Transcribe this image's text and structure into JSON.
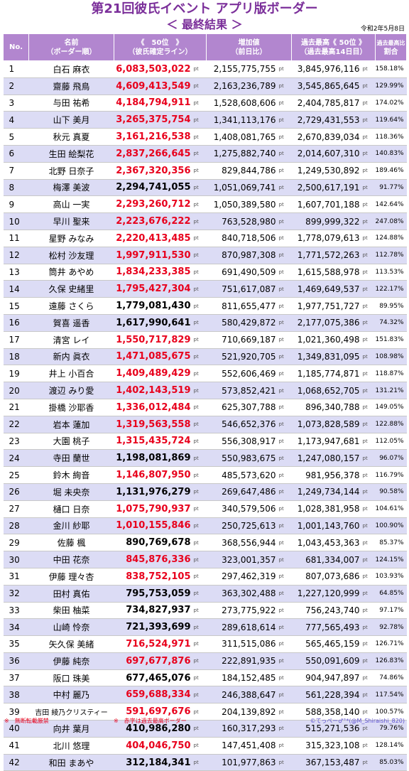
{
  "title": "第21回彼氏イベント アプリ版ボーダー",
  "subtitle": "＜ 最終結果 ＞",
  "date": "令和2年5月8日",
  "headers": {
    "no": "No.",
    "name_l1": "名前",
    "name_l2": "（ボーダー順）",
    "score_l1": "《　50位　》",
    "score_l2": "（彼氏確定ライン）",
    "inc_l1": "増加値",
    "inc_l2": "（前日比）",
    "best_l1": "過去最高《 50位 》",
    "best_l2": "（過去最高14日目）",
    "ratio_l1": "過去最高比",
    "ratio_l2": "割合"
  },
  "unit": "pt",
  "rows": [
    {
      "rank": "1",
      "name": "白石 麻衣",
      "score": "6,083,503,022",
      "inc": "2,155,775,755",
      "best": "3,845,976,116",
      "ratio": "158.18%",
      "red": true
    },
    {
      "rank": "2",
      "name": "齋藤 飛鳥",
      "score": "4,609,413,549",
      "inc": "2,163,236,789",
      "best": "3,545,865,645",
      "ratio": "129.99%",
      "red": true
    },
    {
      "rank": "3",
      "name": "与田 祐希",
      "score": "4,184,794,911",
      "inc": "1,528,608,606",
      "best": "2,404,785,817",
      "ratio": "174.02%",
      "red": true
    },
    {
      "rank": "4",
      "name": "山下 美月",
      "score": "3,265,375,754",
      "inc": "1,341,113,176",
      "best": "2,729,431,553",
      "ratio": "119.64%",
      "red": true
    },
    {
      "rank": "5",
      "name": "秋元 真夏",
      "score": "3,161,216,538",
      "inc": "1,408,081,765",
      "best": "2,670,839,034",
      "ratio": "118.36%",
      "red": true
    },
    {
      "rank": "6",
      "name": "生田 絵梨花",
      "score": "2,837,266,645",
      "inc": "1,275,882,740",
      "best": "2,014,607,310",
      "ratio": "140.83%",
      "red": true
    },
    {
      "rank": "7",
      "name": "北野 日奈子",
      "score": "2,367,320,356",
      "inc": "829,844,786",
      "best": "1,249,530,892",
      "ratio": "189.46%",
      "red": true
    },
    {
      "rank": "8",
      "name": "梅澤 美波",
      "score": "2,294,741,055",
      "inc": "1,051,069,741",
      "best": "2,500,617,191",
      "ratio": "91.77%",
      "red": false
    },
    {
      "rank": "9",
      "name": "高山 一実",
      "score": "2,293,260,712",
      "inc": "1,050,389,580",
      "best": "1,607,701,188",
      "ratio": "142.64%",
      "red": true
    },
    {
      "rank": "10",
      "name": "早川 聖来",
      "score": "2,223,676,222",
      "inc": "763,528,980",
      "best": "899,999,322",
      "ratio": "247.08%",
      "red": true
    },
    {
      "rank": "11",
      "name": "星野 みなみ",
      "score": "2,220,413,485",
      "inc": "840,718,506",
      "best": "1,778,079,613",
      "ratio": "124.88%",
      "red": true
    },
    {
      "rank": "12",
      "name": "松村 沙友理",
      "score": "1,997,911,530",
      "inc": "870,987,308",
      "best": "1,771,572,263",
      "ratio": "112.78%",
      "red": true
    },
    {
      "rank": "13",
      "name": "筒井 あやめ",
      "score": "1,834,233,385",
      "inc": "691,490,509",
      "best": "1,615,588,978",
      "ratio": "113.53%",
      "red": true
    },
    {
      "rank": "14",
      "name": "久保 史緒里",
      "score": "1,795,427,304",
      "inc": "751,617,087",
      "best": "1,469,649,537",
      "ratio": "122.17%",
      "red": true
    },
    {
      "rank": "15",
      "name": "遠藤 さくら",
      "score": "1,779,081,430",
      "inc": "811,655,477",
      "best": "1,977,751,727",
      "ratio": "89.95%",
      "red": false
    },
    {
      "rank": "16",
      "name": "賀喜 遥香",
      "score": "1,617,990,641",
      "inc": "580,429,872",
      "best": "2,177,075,386",
      "ratio": "74.32%",
      "red": false
    },
    {
      "rank": "17",
      "name": "清宮 レイ",
      "score": "1,550,717,829",
      "inc": "710,669,187",
      "best": "1,021,360,498",
      "ratio": "151.83%",
      "red": true
    },
    {
      "rank": "18",
      "name": "新内 眞衣",
      "score": "1,471,085,675",
      "inc": "521,920,705",
      "best": "1,349,831,095",
      "ratio": "108.98%",
      "red": true
    },
    {
      "rank": "19",
      "name": "井上 小百合",
      "score": "1,409,489,429",
      "inc": "552,606,469",
      "best": "1,185,774,871",
      "ratio": "118.87%",
      "red": true
    },
    {
      "rank": "20",
      "name": "渡辺 みり愛",
      "score": "1,402,143,519",
      "inc": "573,852,421",
      "best": "1,068,652,705",
      "ratio": "131.21%",
      "red": true
    },
    {
      "rank": "21",
      "name": "掛橋 沙耶香",
      "score": "1,336,012,484",
      "inc": "625,307,788",
      "best": "896,340,788",
      "ratio": "149.05%",
      "red": true
    },
    {
      "rank": "22",
      "name": "岩本 蓮加",
      "score": "1,319,563,558",
      "inc": "546,652,376",
      "best": "1,073,828,589",
      "ratio": "122.88%",
      "red": true
    },
    {
      "rank": "23",
      "name": "大園 桃子",
      "score": "1,315,435,724",
      "inc": "556,308,917",
      "best": "1,173,947,681",
      "ratio": "112.05%",
      "red": true
    },
    {
      "rank": "24",
      "name": "寺田 蘭世",
      "score": "1,198,081,869",
      "inc": "550,983,675",
      "best": "1,247,080,157",
      "ratio": "96.07%",
      "red": false
    },
    {
      "rank": "25",
      "name": "鈴木 絢音",
      "score": "1,146,807,950",
      "inc": "485,573,620",
      "best": "981,956,378",
      "ratio": "116.79%",
      "red": true
    },
    {
      "rank": "26",
      "name": "堀 未央奈",
      "score": "1,131,976,279",
      "inc": "269,647,486",
      "best": "1,249,734,144",
      "ratio": "90.58%",
      "red": false
    },
    {
      "rank": "27",
      "name": "樋口 日奈",
      "score": "1,075,790,937",
      "inc": "340,579,506",
      "best": "1,028,381,958",
      "ratio": "104.61%",
      "red": true
    },
    {
      "rank": "28",
      "name": "金川 紗耶",
      "score": "1,010,155,846",
      "inc": "250,725,613",
      "best": "1,001,143,760",
      "ratio": "100.90%",
      "red": true
    },
    {
      "rank": "29",
      "name": "佐藤 楓",
      "score": "890,769,678",
      "inc": "368,556,944",
      "best": "1,043,453,363",
      "ratio": "85.37%",
      "red": false
    },
    {
      "rank": "30",
      "name": "中田 花奈",
      "score": "845,876,336",
      "inc": "323,001,357",
      "best": "681,334,007",
      "ratio": "124.15%",
      "red": true
    },
    {
      "rank": "31",
      "name": "伊藤 理々杏",
      "score": "838,752,105",
      "inc": "297,462,319",
      "best": "807,073,686",
      "ratio": "103.93%",
      "red": true
    },
    {
      "rank": "32",
      "name": "田村 真佑",
      "score": "795,753,059",
      "inc": "363,302,488",
      "best": "1,227,120,999",
      "ratio": "64.85%",
      "red": false
    },
    {
      "rank": "33",
      "name": "柴田 柚菜",
      "score": "734,827,937",
      "inc": "273,775,922",
      "best": "756,243,740",
      "ratio": "97.17%",
      "red": false
    },
    {
      "rank": "34",
      "name": "山崎 怜奈",
      "score": "721,393,699",
      "inc": "289,618,614",
      "best": "777,565,493",
      "ratio": "92.78%",
      "red": false
    },
    {
      "rank": "35",
      "name": "矢久保 美緒",
      "score": "716,524,971",
      "inc": "311,515,086",
      "best": "565,465,159",
      "ratio": "126.71%",
      "red": true
    },
    {
      "rank": "36",
      "name": "伊藤 純奈",
      "score": "697,677,876",
      "inc": "222,891,935",
      "best": "550,091,609",
      "ratio": "126.83%",
      "red": true
    },
    {
      "rank": "37",
      "name": "阪口 珠美",
      "score": "677,465,076",
      "inc": "184,152,485",
      "best": "904,947,897",
      "ratio": "74.86%",
      "red": false
    },
    {
      "rank": "38",
      "name": "中村 麗乃",
      "score": "659,688,334",
      "inc": "246,388,647",
      "best": "561,228,394",
      "ratio": "117.54%",
      "red": true
    },
    {
      "rank": "39",
      "name": "吉田 綾乃クリスティー",
      "score": "591,697,676",
      "inc": "204,139,892",
      "best": "588,358,140",
      "ratio": "100.57%",
      "red": true
    },
    {
      "rank": "40",
      "name": "向井 葉月",
      "score": "410,986,280",
      "inc": "160,317,293",
      "best": "515,271,536",
      "ratio": "79.76%",
      "red": false
    },
    {
      "rank": "41",
      "name": "北川 悠理",
      "score": "404,046,750",
      "inc": "147,451,408",
      "best": "315,323,108",
      "ratio": "128.14%",
      "red": true
    },
    {
      "rank": "42",
      "name": "和田 まあや",
      "score": "312,184,341",
      "inc": "101,977,863",
      "best": "367,153,487",
      "ratio": "85.03%",
      "red": false
    }
  ],
  "footer": {
    "note1": "※　無断転載厳禁",
    "note2": "※　赤字は過去最高ボーダー",
    "credit": "©てっぺー♂°*(@M_Shiraishi_820)"
  },
  "colors": {
    "title": "#7b2f9a",
    "header_bg": "#b286cf",
    "row_shade": "#dcdcf5",
    "record_red": "#e8001c"
  }
}
